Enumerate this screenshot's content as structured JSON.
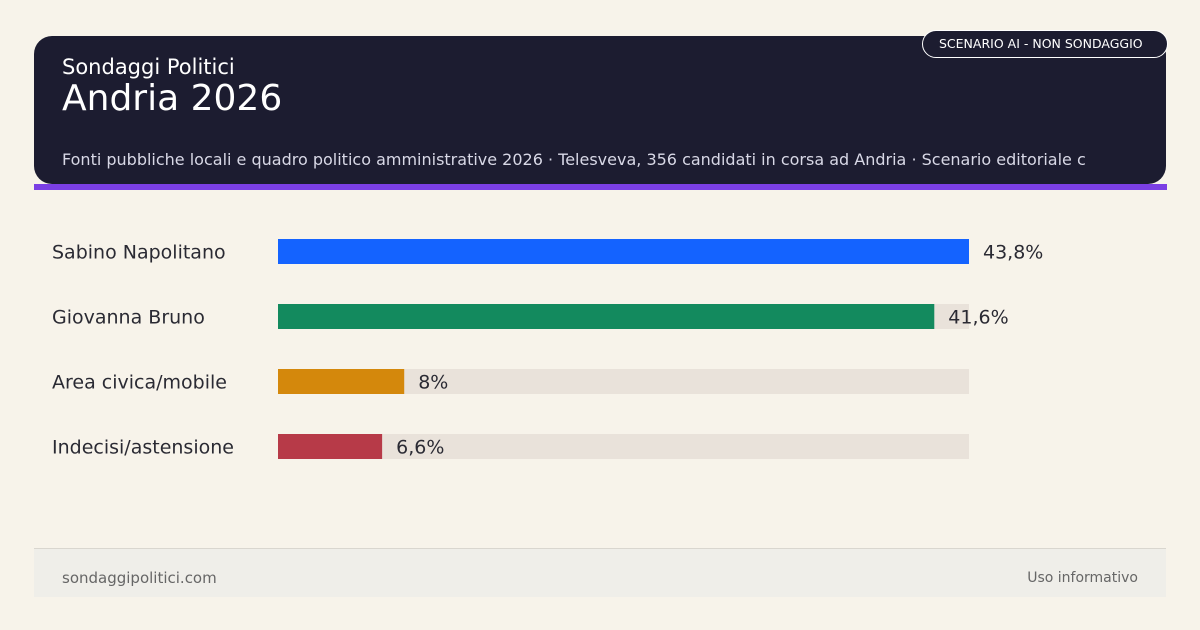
{
  "header": {
    "brand": "Sondaggi Politici",
    "title": "Andria 2026",
    "sources": "Fonti pubbliche locali e quadro politico amministrative 2026 · Telesveva, 356 candidati in corsa ad Andria · Scenario editoriale c",
    "badge": "SCENARIO AI - NON SONDAGGIO"
  },
  "chart_data": {
    "type": "bar",
    "orientation": "horizontal",
    "categories": [
      "Sabino Napolitano",
      "Giovanna Bruno",
      "Area civica/mobile",
      "Indecisi/astensione"
    ],
    "values": [
      43.8,
      41.6,
      8,
      6.6
    ],
    "value_labels": [
      "43,8%",
      "41,6%",
      "8%",
      "6,6%"
    ],
    "colors": [
      "#1463ff",
      "#138a5e",
      "#d4880c",
      "#b73a48"
    ],
    "track_color": "#e9e2da",
    "xlim": [
      0,
      43.8
    ],
    "grid": false
  },
  "footer": {
    "site": "sondaggipolitici.com",
    "note": "Uso informativo"
  }
}
